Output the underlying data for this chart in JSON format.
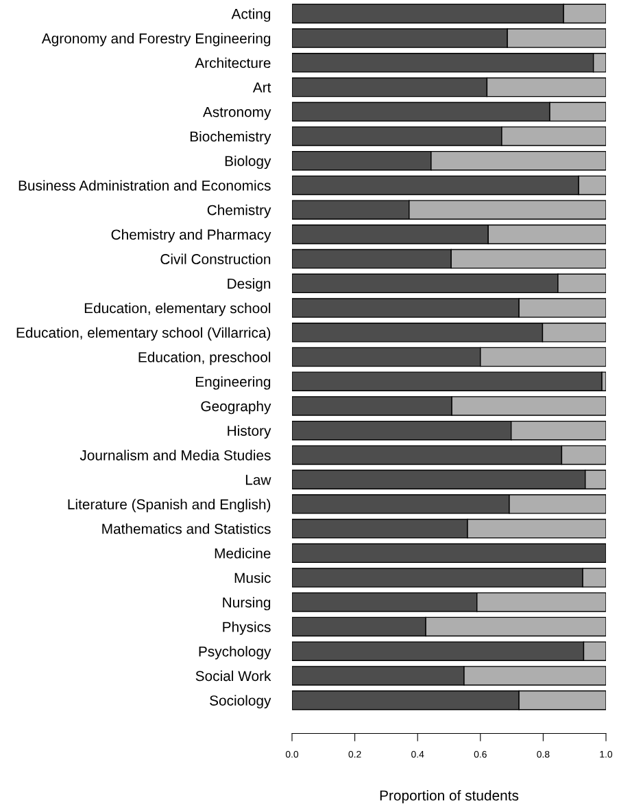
{
  "chart_data": {
    "type": "bar",
    "orientation": "horizontal",
    "stacked": true,
    "xlabel": "Proportion of students",
    "categories": [
      "Acting",
      "Agronomy and Forestry Engineering",
      "Architecture",
      "Art",
      "Astronomy",
      "Biochemistry",
      "Biology",
      "Business Administration and Economics",
      "Chemistry",
      "Chemistry and Pharmacy",
      "Civil Construction",
      "Design",
      "Education, elementary school",
      "Education, elementary school (Villarrica)",
      "Education, preschool",
      "Engineering",
      "Geography",
      "History",
      "Journalism and Media Studies",
      "Law",
      "Literature (Spanish and English)",
      "Mathematics and Statistics",
      "Medicine",
      "Music",
      "Nursing",
      "Physics",
      "Psychology",
      "Social Work",
      "Sociology"
    ],
    "series": [
      {
        "color": "#4d4d4d",
        "values": [
          0.865,
          0.686,
          0.96,
          0.621,
          0.821,
          0.668,
          0.443,
          0.913,
          0.373,
          0.625,
          0.507,
          0.847,
          0.723,
          0.798,
          0.6,
          0.987,
          0.509,
          0.698,
          0.859,
          0.934,
          0.692,
          0.559,
          1.0,
          0.926,
          0.589,
          0.426,
          0.929,
          0.548,
          0.723
        ]
      },
      {
        "color": "#aeaeae",
        "values": [
          0.135,
          0.314,
          0.04,
          0.379,
          0.179,
          0.332,
          0.557,
          0.087,
          0.627,
          0.375,
          0.493,
          0.153,
          0.277,
          0.202,
          0.4,
          0.013,
          0.491,
          0.302,
          0.141,
          0.066,
          0.308,
          0.441,
          null,
          0.074,
          0.411,
          0.574,
          0.071,
          0.452,
          0.277
        ]
      }
    ],
    "xlim": [
      0,
      1
    ],
    "xticks": [
      {
        "value": 0,
        "label": "0.0"
      },
      {
        "value": 0.2,
        "label": "0.2"
      },
      {
        "value": 0.4,
        "label": "0.4"
      },
      {
        "value": 0.6,
        "label": "0.6"
      },
      {
        "value": 0.8,
        "label": "0.8"
      },
      {
        "value": 1,
        "label": "1.0"
      }
    ],
    "grid": false,
    "legend": false
  }
}
